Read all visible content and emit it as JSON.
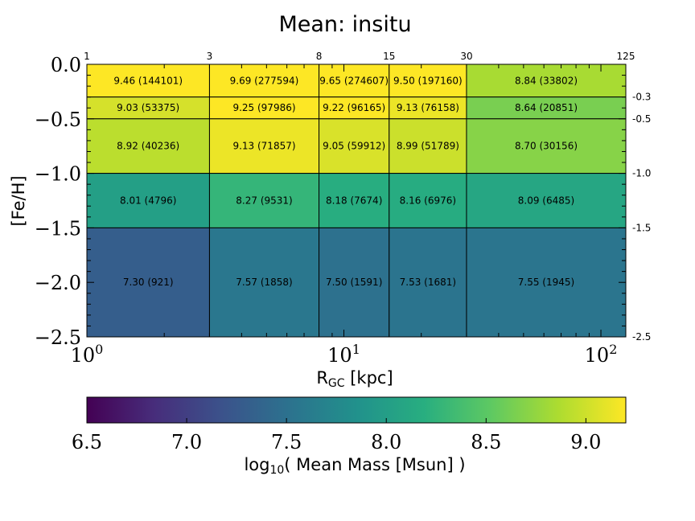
{
  "chart_data": {
    "type": "heatmap",
    "title": "Mean: insitu",
    "xlabel_main": "R",
    "xlabel_sub": "GC",
    "xlabel_unit": " [kpc]",
    "ylabel": "[Fe/H]",
    "x_scale": "log",
    "xlim": [
      1,
      125
    ],
    "ylim": [
      -2.5,
      0.0
    ],
    "x_edges": [
      1,
      3,
      8,
      15,
      30,
      125
    ],
    "x_edge_labels": [
      "1",
      "3",
      "8",
      "15",
      "30",
      "125"
    ],
    "y_edges": [
      0.0,
      -0.3,
      -0.5,
      -1.0,
      -1.5,
      -2.5
    ],
    "y_edge_labels": [
      "-0.3",
      "-0.5",
      "-1.0",
      "-1.5",
      "-2.5"
    ],
    "x_tick_labels": [
      {
        "base": "10",
        "exp": "0",
        "value": 1
      },
      {
        "base": "10",
        "exp": "1",
        "value": 10
      },
      {
        "base": "10",
        "exp": "2",
        "value": 100
      }
    ],
    "y_tick_labels": [
      {
        "text": "0.0",
        "value": 0.0
      },
      {
        "text": "−0.5",
        "value": -0.5
      },
      {
        "text": "−1.0",
        "value": -1.0
      },
      {
        "text": "−1.5",
        "value": -1.5
      },
      {
        "text": "−2.0",
        "value": -2.0
      },
      {
        "text": "−2.5",
        "value": -2.5
      }
    ],
    "values": [
      [
        9.46,
        9.69,
        9.65,
        9.5,
        8.84
      ],
      [
        9.03,
        9.25,
        9.22,
        9.13,
        8.64
      ],
      [
        8.92,
        9.13,
        9.05,
        8.99,
        8.7
      ],
      [
        8.01,
        8.27,
        8.18,
        8.16,
        8.09
      ],
      [
        7.3,
        7.57,
        7.5,
        7.53,
        7.55
      ]
    ],
    "counts": [
      [
        144101,
        277594,
        274607,
        197160,
        33802
      ],
      [
        53375,
        97986,
        96165,
        76158,
        20851
      ],
      [
        40236,
        71857,
        59912,
        51789,
        30156
      ],
      [
        4796,
        9531,
        7674,
        6976,
        6485
      ],
      [
        921,
        1858,
        1591,
        1681,
        1945
      ]
    ],
    "colorbar": {
      "colormap": "viridis",
      "vmin": 6.5,
      "vmax": 9.2,
      "ticks": [
        "6.5",
        "7.0",
        "7.5",
        "8.0",
        "8.5",
        "9.0"
      ],
      "label_prefix": "log",
      "label_sub": "10",
      "label_rest": "( Mean Mass [Msun] )"
    }
  }
}
